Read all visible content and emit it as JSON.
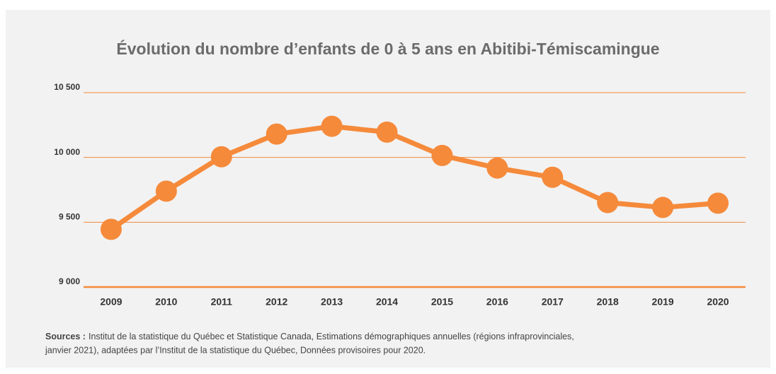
{
  "chart_data": {
    "type": "line",
    "title": "Évolution du nombre d’enfants de 0 à 5 ans en Abitibi-Témiscamingue",
    "categories": [
      "2009",
      "2010",
      "2011",
      "2012",
      "2013",
      "2014",
      "2015",
      "2016",
      "2017",
      "2018",
      "2019",
      "2020"
    ],
    "series": [
      {
        "color": "#f58a3b",
        "values": [
          9445,
          9740,
          10005,
          10180,
          10240,
          10195,
          10015,
          9918,
          9847,
          9652,
          9614,
          9647
        ]
      }
    ],
    "ylim": [
      9000,
      10500
    ],
    "yticks": [
      {
        "value": 9000,
        "label": "9 000"
      },
      {
        "value": 9500,
        "label": "9 500"
      },
      {
        "value": 10000,
        "label": "10 000"
      },
      {
        "value": 10500,
        "label": "10 500"
      }
    ],
    "grid": true,
    "source_label": "Sources :",
    "source_text": [
      "Institut de la statistique du Québec et Statistique Canada, Estimations démographiques annuelles (régions infraprovinciales,",
      "janvier 2021), adaptées par l’Institut de la statistique du Québec, Données provisoires pour 2020."
    ]
  }
}
